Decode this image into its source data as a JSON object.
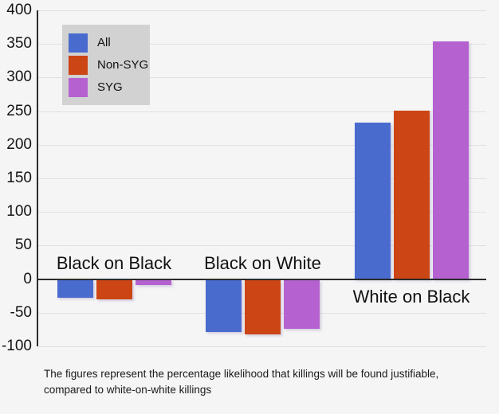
{
  "chart_data": {
    "type": "bar",
    "categories": [
      "Black on Black",
      "Black on White",
      "White on Black"
    ],
    "series": [
      {
        "name": "All",
        "color": "#4a6bce",
        "values": [
          -26,
          -78,
          233
        ]
      },
      {
        "name": "Non-SYG",
        "color": "#cc4514",
        "values": [
          -29,
          -81,
          251
        ]
      },
      {
        "name": "SYG",
        "color": "#b562d0",
        "values": [
          -7,
          -73,
          354
        ]
      }
    ],
    "ylim": [
      -100,
      400
    ],
    "yticks": [
      400,
      350,
      300,
      250,
      200,
      150,
      100,
      50,
      0,
      -50,
      -100
    ],
    "grid": true,
    "legend_position": "top-left"
  },
  "caption": {
    "line1": "The figures represent the percentage likelihood that killings will be found justifiable,",
    "line2": "compared to white-on-white killings"
  },
  "colors": {
    "background": "#f5f5f6",
    "gridline": "#e0e0e2",
    "axis": "#2b2b2b",
    "legend_background": "#d2d2d2",
    "text": "#1a1a1a"
  }
}
